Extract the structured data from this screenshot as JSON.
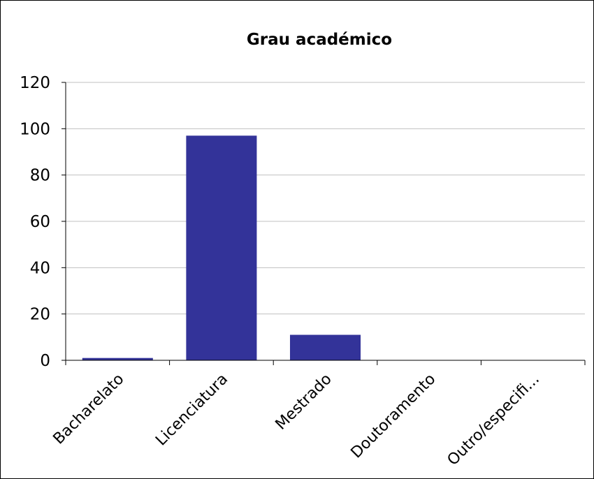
{
  "chart_data": {
    "type": "bar",
    "title": "Grau académico",
    "xlabel": "",
    "ylabel": "",
    "categories": [
      "Bacharelato",
      "Licenciatura",
      "Mestrado",
      "Doutoramento",
      "Outro/especifi..."
    ],
    "values": [
      1,
      97,
      11,
      0,
      0
    ],
    "ylim": [
      0,
      120
    ],
    "yticks": [
      0,
      20,
      40,
      60,
      80,
      100,
      120
    ],
    "grid": true,
    "legend": "none",
    "bar_color": "#333399",
    "grid_color": "#c0c0c0"
  }
}
